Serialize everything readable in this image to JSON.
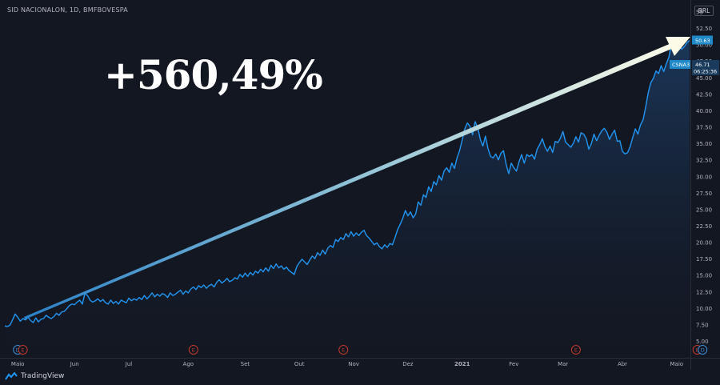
{
  "header": {
    "symbol_title": "SID NACIONALON, 1D, BMFBOVESPA",
    "currency": "BRL"
  },
  "annotation": {
    "text": "+560,49%"
  },
  "price_badges": {
    "last": "50.63",
    "ticker": "CSNA3",
    "value2": "46.71",
    "countdown": "06:25:36"
  },
  "footer": {
    "brand": "TradingView"
  },
  "colors": {
    "background": "#131722",
    "line": "#2196f3",
    "area_top": "#1c3c63",
    "badge": "#1e88c8",
    "event_earnings": "#c0392b",
    "event_dividend": "#3a8fd8"
  },
  "chart_data": {
    "type": "area",
    "title": "",
    "xlabel": "",
    "ylabel": "",
    "ylim": [
      2.5,
      55
    ],
    "y_ticks": [
      "5.00",
      "7.50",
      "10.00",
      "12.50",
      "15.00",
      "17.50",
      "20.00",
      "22.50",
      "25.00",
      "27.50",
      "30.00",
      "32.50",
      "35.00",
      "37.50",
      "40.00",
      "42.50",
      "45.00",
      "47.50",
      "50.00",
      "52.50",
      "55"
    ],
    "x_ticks": [
      {
        "label": "Maio",
        "t": 5
      },
      {
        "label": "Jun",
        "t": 27
      },
      {
        "label": "Jul",
        "t": 48
      },
      {
        "label": "Ago",
        "t": 71
      },
      {
        "label": "Set",
        "t": 93
      },
      {
        "label": "Out",
        "t": 114
      },
      {
        "label": "Nov",
        "t": 135
      },
      {
        "label": "Dez",
        "t": 156
      },
      {
        "label": "2021",
        "t": 177
      },
      {
        "label": "Fev",
        "t": 197
      },
      {
        "label": "Mar",
        "t": 216
      },
      {
        "label": "Abr",
        "t": 239
      },
      {
        "label": "Maio",
        "t": 260
      }
    ],
    "grid": false,
    "series": [
      {
        "values": [
          7.3,
          7.2,
          7.4,
          8.2,
          9.1,
          8.6,
          8.0,
          8.4,
          8.2,
          8.6,
          8.1,
          7.8,
          8.5,
          7.9,
          8.3,
          8.4,
          8.9,
          8.6,
          8.4,
          8.7,
          9.2,
          8.9,
          9.4,
          9.5,
          9.9,
          10.4,
          10.6,
          10.5,
          10.9,
          11.2,
          10.6,
          12.2,
          11.9,
          11.2,
          10.9,
          11.1,
          11.4,
          11.0,
          11.3,
          10.8,
          10.6,
          11.2,
          10.7,
          11.0,
          10.6,
          11.2,
          11.0,
          10.8,
          11.5,
          11.1,
          11.4,
          11.2,
          11.6,
          11.3,
          11.9,
          11.4,
          11.8,
          12.3,
          11.7,
          12.1,
          11.8,
          12.2,
          12.0,
          11.6,
          12.3,
          11.9,
          12.1,
          12.4,
          12.7,
          12.1,
          12.6,
          12.3,
          12.9,
          13.2,
          12.8,
          13.4,
          13.1,
          13.5,
          13.0,
          13.4,
          13.6,
          13.2,
          13.9,
          14.3,
          13.8,
          14.1,
          14.5,
          14.0,
          14.2,
          14.6,
          14.4,
          15.1,
          14.7,
          15.3,
          14.8,
          15.4,
          15.0,
          15.6,
          15.3,
          15.9,
          15.5,
          16.1,
          15.6,
          16.5,
          16.0,
          16.7,
          16.1,
          16.4,
          15.9,
          16.2,
          15.7,
          15.4,
          15.1,
          16.3,
          16.9,
          17.4,
          17.0,
          16.6,
          17.3,
          17.9,
          17.5,
          18.4,
          18.0,
          18.8,
          18.2,
          19.1,
          19.5,
          19.2,
          20.4,
          20.1,
          20.7,
          20.4,
          21.3,
          20.8,
          21.6,
          20.9,
          21.4,
          21.0,
          21.5,
          21.8,
          21.0,
          20.6,
          20.1,
          19.6,
          19.9,
          19.3,
          19.0,
          19.6,
          19.2,
          19.8,
          19.6,
          20.7,
          21.9,
          22.7,
          23.6,
          24.8,
          24.0,
          24.6,
          23.7,
          24.3,
          26.1,
          25.6,
          27.2,
          26.8,
          28.4,
          27.7,
          29.2,
          28.7,
          30.1,
          29.4,
          30.8,
          31.3,
          30.6,
          32.0,
          31.2,
          32.8,
          33.9,
          35.5,
          37.2,
          38.1,
          37.6,
          36.3,
          38.3,
          37.4,
          35.6,
          34.6,
          36.1,
          34.2,
          33.0,
          32.8,
          33.4,
          32.5,
          33.5,
          33.9,
          31.8,
          30.4,
          32.0,
          31.3,
          30.8,
          32.2,
          33.3,
          32.0,
          33.3,
          33.0,
          33.3,
          32.6,
          34.1,
          34.8,
          35.7,
          34.5,
          33.8,
          34.6,
          33.6,
          35.3,
          35.1,
          35.8,
          36.8,
          35.2,
          34.8,
          34.4,
          35.0,
          36.0,
          35.2,
          36.6,
          36.4,
          35.7,
          34.1,
          35.0,
          36.4,
          35.4,
          36.2,
          36.9,
          37.3,
          36.7,
          35.6,
          36.4,
          37.0,
          35.3,
          35.4,
          33.8,
          33.4,
          33.6,
          34.5,
          35.9,
          37.2,
          36.4,
          37.8,
          38.6,
          40.5,
          42.7,
          44.2,
          44.9,
          46.0,
          45.6,
          46.8,
          45.9,
          47.1,
          48.1,
          50.2,
          50.8,
          49.6,
          49.8,
          49.3,
          49.7,
          50.3,
          50.63
        ]
      }
    ],
    "events": [
      {
        "type": "dividend",
        "label": "D",
        "t": 5
      },
      {
        "type": "earnings",
        "label": "E",
        "t": 7
      },
      {
        "type": "earnings",
        "label": "E",
        "t": 73
      },
      {
        "type": "earnings",
        "label": "E",
        "t": 131
      },
      {
        "type": "earnings",
        "label": "E",
        "t": 221
      },
      {
        "type": "earnings",
        "label": "E",
        "t": 268
      },
      {
        "type": "dividend",
        "label": "D",
        "t": 270
      }
    ]
  }
}
